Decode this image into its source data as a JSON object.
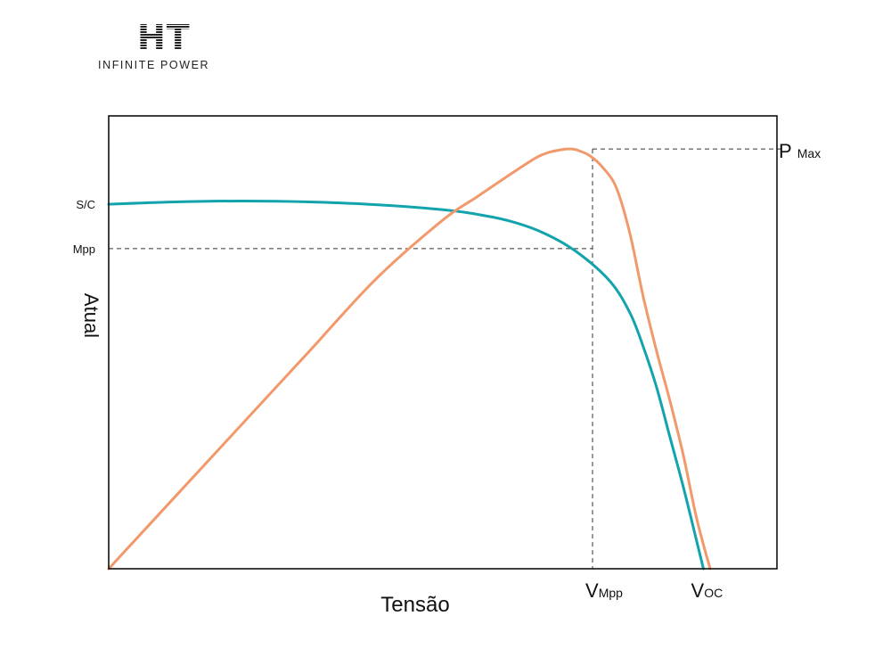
{
  "logo": {
    "mark": "HT",
    "tagline": "INFINITE POWER"
  },
  "chart_data": {
    "type": "line",
    "xlabel": "Tensão",
    "ylabel": "Atual",
    "grid": false,
    "legend": "none",
    "xlim": [
      0,
      1
    ],
    "ylim": [
      0,
      1
    ],
    "colors": {
      "current": "#12a3ad",
      "power": "#f2996c",
      "axis": "#111111",
      "guides": "#333333"
    },
    "series": [
      {
        "x": [
          0,
          0.1,
          0.2,
          0.3,
          0.4,
          0.5,
          0.55,
          0.6,
          0.65,
          0.7,
          0.75,
          0.78,
          0.8,
          0.82,
          0.84,
          0.86,
          0.88,
          0.89
        ],
        "y": [
          0.805,
          0.81,
          0.812,
          0.81,
          0.804,
          0.793,
          0.783,
          0.768,
          0.742,
          0.7,
          0.635,
          0.565,
          0.49,
          0.4,
          0.29,
          0.18,
          0.06,
          0
        ]
      },
      {
        "x": [
          0,
          0.1,
          0.2,
          0.3,
          0.4,
          0.5,
          0.55,
          0.6,
          0.64,
          0.66,
          0.68,
          0.69,
          0.7,
          0.72,
          0.74,
          0.76,
          0.78,
          0.8,
          0.82,
          0.84,
          0.86,
          0.88,
          0.9
        ],
        "y": [
          0,
          0.16,
          0.32,
          0.48,
          0.64,
          0.77,
          0.82,
          0.87,
          0.908,
          0.92,
          0.926,
          0.927,
          0.925,
          0.912,
          0.885,
          0.84,
          0.74,
          0.6,
          0.48,
          0.37,
          0.25,
          0.11,
          0
        ]
      }
    ],
    "y_ticks": [
      {
        "label": "S/C",
        "y": 0.805
      },
      {
        "label": "Mpp",
        "y": 0.707
      }
    ],
    "annotations": {
      "pmax": {
        "main": "P",
        "sub": "Max",
        "y": 0.927
      },
      "vmpp": {
        "main": "V",
        "sub": "Mpp",
        "x": 0.724
      },
      "voc": {
        "main": "V",
        "sub": "OC",
        "x": 0.89
      }
    }
  }
}
